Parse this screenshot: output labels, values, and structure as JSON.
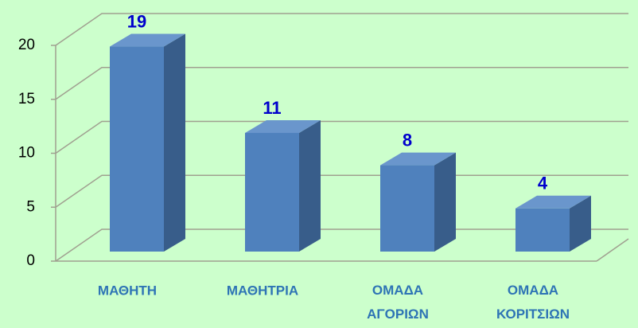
{
  "chart_data": {
    "type": "bar3d",
    "categories": [
      "ΜΑΘΗΤΗ",
      "ΜΑΘΗΤΡΙΑ",
      "ΟΜΑΔΑ ΑΓΟΡΙΩΝ",
      "ΟΜΑΔΑ ΚΟΡΙΤΣΙΩΝ"
    ],
    "values": [
      19,
      11,
      8,
      4
    ],
    "color": "#4f81bd",
    "ylim": [
      0,
      20
    ],
    "yticks": [
      0,
      5,
      10,
      15,
      20
    ],
    "grid": true
  }
}
